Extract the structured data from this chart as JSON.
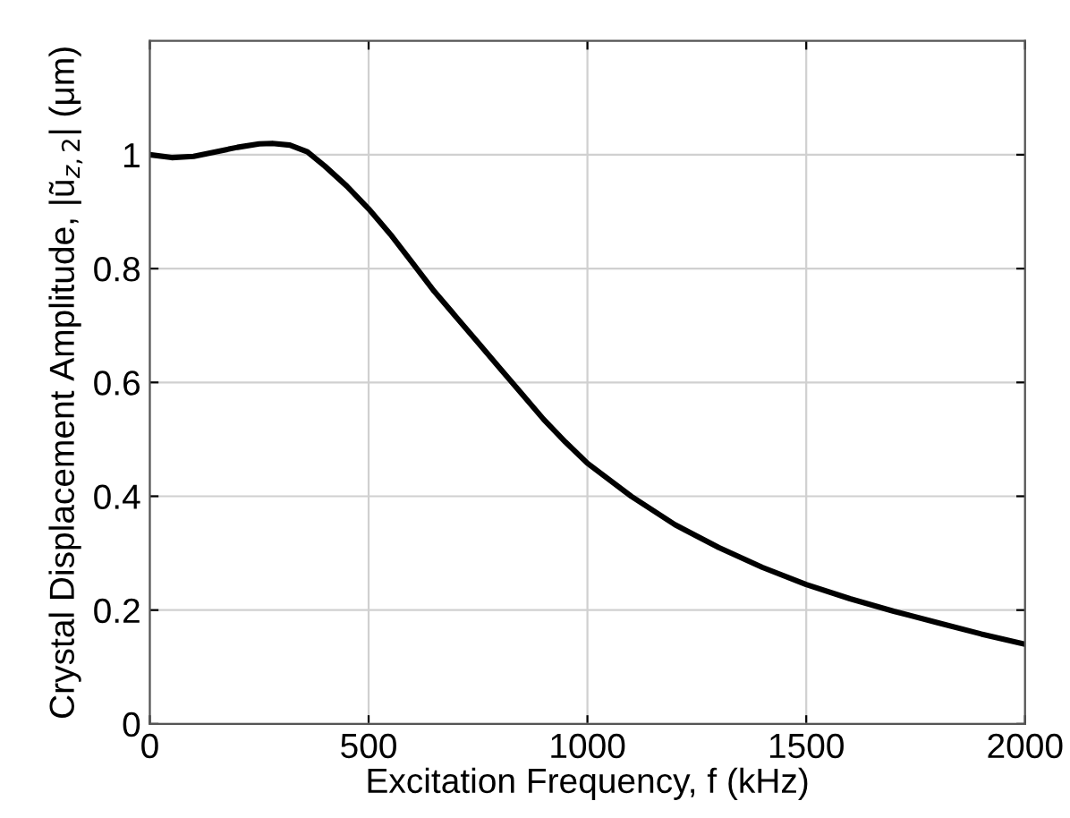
{
  "chart_data": {
    "type": "line",
    "xlabel": "Excitation Frequency, f (kHz)",
    "ylabel": "Crystal Displacement Amplitude, |ũ$_{z,2}$| (μm)",
    "x": [
      0,
      50,
      100,
      150,
      200,
      250,
      280,
      320,
      360,
      400,
      450,
      500,
      550,
      600,
      650,
      700,
      750,
      800,
      850,
      900,
      950,
      1000,
      1100,
      1200,
      1300,
      1400,
      1500,
      1600,
      1700,
      1800,
      1900,
      2000
    ],
    "series": [
      {
        "color": "#000000",
        "values": [
          1.0,
          0.995,
          0.997,
          1.005,
          1.013,
          1.019,
          1.02,
          1.017,
          1.005,
          0.98,
          0.945,
          0.905,
          0.86,
          0.81,
          0.76,
          0.715,
          0.67,
          0.625,
          0.58,
          0.535,
          0.495,
          0.458,
          0.4,
          0.35,
          0.31,
          0.275,
          0.245,
          0.22,
          0.198,
          0.178,
          0.158,
          0.14
        ]
      }
    ],
    "xlim": [
      0,
      2000
    ],
    "ylim": [
      0,
      1.2
    ],
    "xticks": [
      0,
      500,
      1000,
      1500,
      2000
    ],
    "yticks": [
      0,
      0.2,
      0.4,
      0.6,
      0.8,
      1
    ],
    "grid": true,
    "legend": false,
    "marker": "none",
    "line_style": "solid"
  }
}
